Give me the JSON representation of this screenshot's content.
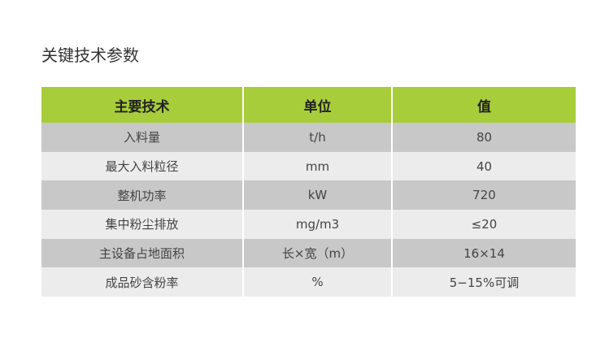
{
  "title": "关键技术参数",
  "headers": [
    "主要技术",
    "单位",
    "值"
  ],
  "rows": [
    [
      "入料量",
      "t/h",
      "80"
    ],
    [
      "最大入料粒径",
      "mm",
      "40"
    ],
    [
      "整机功率",
      "kW",
      "720"
    ],
    [
      "集中粉尘排放",
      "mg/m3",
      "≤20"
    ],
    [
      "主设备占地面积",
      "长×宽（m）",
      "16×14"
    ],
    [
      "成品砂含粉率",
      "%",
      "5−15%可调"
    ]
  ],
  "colors": {
    "header": "#a8cd3a",
    "row_dark": "#c8c8c8",
    "row_light": "#ececec"
  }
}
